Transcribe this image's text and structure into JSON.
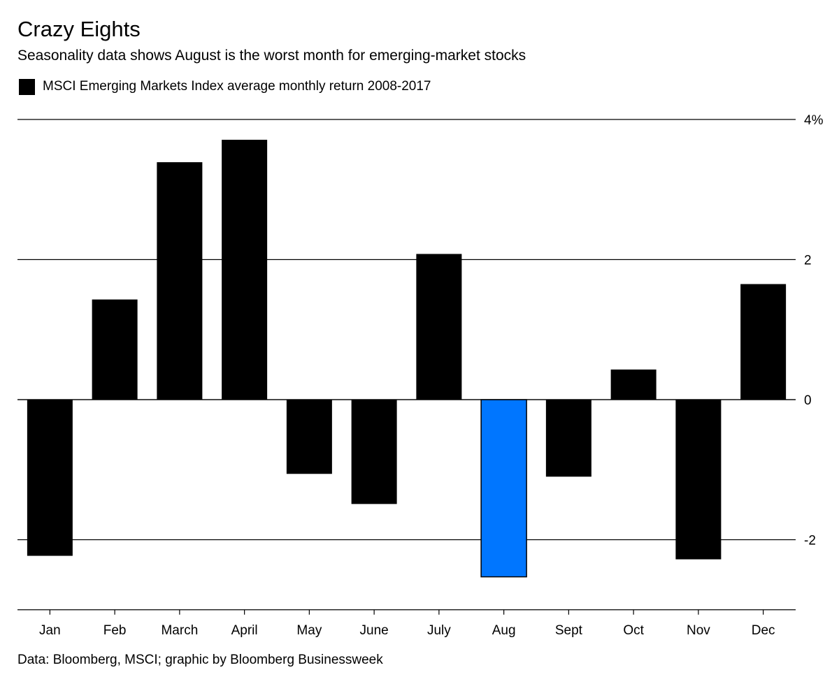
{
  "title": "Crazy Eights",
  "subtitle": "Seasonality data shows August is the worst month for emerging-market stocks",
  "legend": {
    "label": "MSCI Emerging Markets Index average monthly return 2008-2017",
    "color": "#000000"
  },
  "source": "Data: Bloomberg, MSCI; graphic by Bloomberg Businessweek",
  "chart_data": {
    "type": "bar",
    "title": "Crazy Eights",
    "subtitle": "Seasonality data shows August is the worst month for emerging-market stocks",
    "xlabel": "",
    "ylabel": "",
    "categories": [
      "Jan",
      "Feb",
      "March",
      "April",
      "May",
      "June",
      "July",
      "Aug",
      "Sept",
      "Oct",
      "Nov",
      "Dec"
    ],
    "series": [
      {
        "name": "MSCI Emerging Markets Index average monthly return 2008-2017",
        "values": [
          -2.23,
          1.43,
          3.39,
          3.71,
          -1.06,
          -1.49,
          2.08,
          -2.53,
          -1.1,
          0.43,
          -2.28,
          1.65
        ]
      }
    ],
    "ylim": [
      -3,
      4
    ],
    "yticks": [
      4,
      2,
      0,
      -2
    ],
    "ytick_labels": [
      "4%",
      "2",
      "0",
      "-2"
    ],
    "grid": true,
    "y_axis_side": "right",
    "legend_position": "top-left",
    "bar_color": "#000000",
    "highlight": {
      "category": "Aug",
      "color": "#0076FF"
    }
  }
}
